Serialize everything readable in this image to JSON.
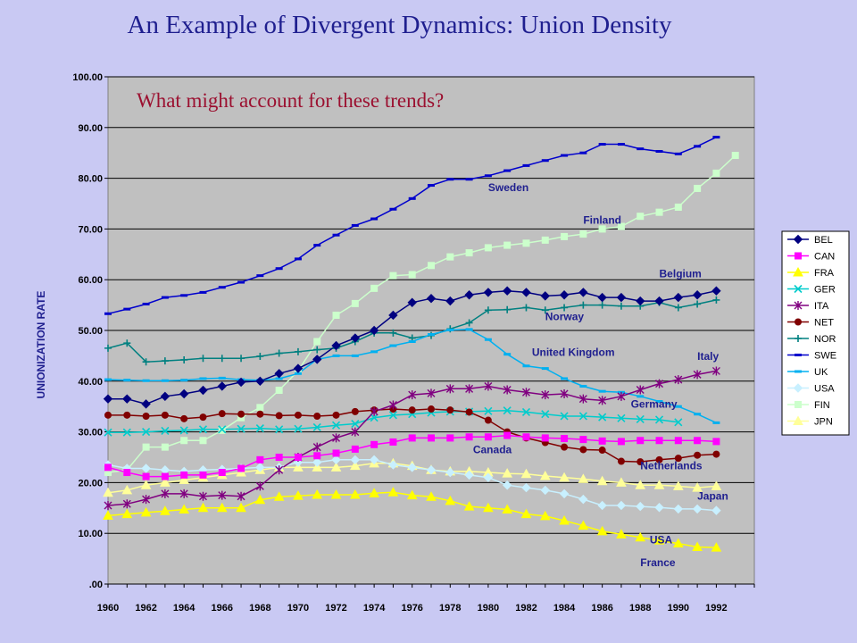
{
  "header": {
    "title": "An Example of Divergent Dynamics: Union Density"
  },
  "chart_data": {
    "type": "line",
    "question": "What might account for these trends?",
    "ylabel": "UNIONIZATION RATE",
    "xlabel": "",
    "ylim": [
      0,
      100
    ],
    "yticks": [
      "100.00",
      "90.00",
      "80.00",
      "70.00",
      "60.00",
      "50.00",
      "40.00",
      "30.00",
      "20.00",
      "10.00",
      ".00"
    ],
    "xticks": [
      "1960",
      "1962",
      "1964",
      "1966",
      "1968",
      "1970",
      "1972",
      "1974",
      "1976",
      "1978",
      "1980",
      "1982",
      "1984",
      "1986",
      "1988",
      "1990",
      "1992"
    ],
    "x": [
      1960,
      1961,
      1962,
      1963,
      1964,
      1965,
      1966,
      1967,
      1968,
      1969,
      1970,
      1971,
      1972,
      1973,
      1974,
      1975,
      1976,
      1977,
      1978,
      1979,
      1980,
      1981,
      1982,
      1983,
      1984,
      1985,
      1986,
      1987,
      1988,
      1989,
      1990,
      1991,
      1992,
      1993
    ],
    "legend_position": "right",
    "grid": true,
    "series": [
      {
        "name": "BEL",
        "color": "#000080",
        "marker": "diamond",
        "values": [
          36.5,
          36.5,
          35.5,
          37,
          37.5,
          38.2,
          39,
          39.8,
          40,
          41.5,
          42.5,
          44.3,
          47,
          48.5,
          50,
          53,
          55.5,
          56.3,
          55.8,
          57,
          57.5,
          57.8,
          57.5,
          56.8,
          57,
          57.5,
          56.5,
          56.5,
          55.8,
          55.8,
          56.5,
          57,
          57.8,
          null
        ]
      },
      {
        "name": "CAN",
        "color": "#ff00ff",
        "marker": "square",
        "values": [
          23,
          22,
          21.2,
          21.2,
          21.5,
          21.5,
          22,
          22.8,
          24.5,
          25,
          25,
          25.3,
          25.8,
          26.6,
          27.5,
          28,
          28.8,
          28.8,
          28.8,
          29,
          29,
          29.3,
          29,
          28.8,
          28.7,
          28.5,
          28.2,
          28.1,
          28.3,
          28.3,
          28.3,
          28.3,
          28.1,
          null
        ]
      },
      {
        "name": "FRA",
        "color": "#ffff00",
        "marker": "triangle",
        "values": [
          13.5,
          13.8,
          14.1,
          14.4,
          14.7,
          15,
          15,
          15,
          16.6,
          17.2,
          17.4,
          17.6,
          17.6,
          17.6,
          17.9,
          18.1,
          17.5,
          17.2,
          16.4,
          15.3,
          15,
          14.7,
          13.8,
          13.4,
          12.5,
          11.5,
          10.4,
          9.8,
          9.2,
          8.6,
          8.0,
          7.3,
          7.2,
          null
        ]
      },
      {
        "name": "GER",
        "color": "#00cccc",
        "marker": "x",
        "values": [
          29.9,
          29.9,
          30,
          30.2,
          30.3,
          30.5,
          30.5,
          30.6,
          30.7,
          30.5,
          30.6,
          30.9,
          31.3,
          31.6,
          32.8,
          33.3,
          33.5,
          33.8,
          34,
          34,
          34.1,
          34.2,
          33.9,
          33.5,
          33.1,
          33.1,
          32.9,
          32.7,
          32.5,
          32.4,
          31.9,
          null,
          null,
          null
        ]
      },
      {
        "name": "ITA",
        "color": "#800080",
        "marker": "asterisk",
        "values": [
          15.5,
          15.8,
          16.7,
          17.8,
          17.8,
          17.3,
          17.5,
          17.3,
          19.3,
          22.5,
          25,
          27,
          28.8,
          30,
          34,
          35.3,
          37.3,
          37.6,
          38.5,
          38.5,
          39,
          38.3,
          37.8,
          37.3,
          37.5,
          36.5,
          36.2,
          37,
          38.3,
          39.5,
          40.3,
          41.3,
          42,
          null
        ]
      },
      {
        "name": "NET",
        "color": "#800000",
        "marker": "circle",
        "values": [
          33.3,
          33.3,
          33.1,
          33.3,
          32.6,
          32.9,
          33.6,
          33.5,
          33.5,
          33.2,
          33.3,
          33.1,
          33.3,
          34,
          34.3,
          34.5,
          34.3,
          34.5,
          34.3,
          33.9,
          32.3,
          30,
          28.8,
          27.9,
          27,
          26.5,
          26.4,
          24.2,
          24.1,
          24.5,
          24.8,
          25.4,
          25.6,
          null
        ]
      },
      {
        "name": "NOR",
        "color": "#008080",
        "marker": "plus",
        "values": [
          46.5,
          47.5,
          43.8,
          44,
          44.2,
          44.5,
          44.5,
          44.5,
          44.9,
          45.5,
          45.8,
          46.2,
          46.5,
          47.8,
          49.5,
          49.5,
          48.5,
          49,
          50.3,
          51.5,
          54,
          54.1,
          54.5,
          54,
          54.5,
          55,
          55,
          54.8,
          54.8,
          55.5,
          54.5,
          55.2,
          56,
          null
        ]
      },
      {
        "name": "SWE",
        "color": "#0000cc",
        "marker": "dash",
        "values": [
          53.3,
          54.2,
          55.2,
          56.5,
          56.9,
          57.5,
          58.5,
          59.5,
          60.8,
          62.2,
          64.1,
          66.8,
          68.8,
          70.7,
          72,
          73.9,
          76,
          78.6,
          79.8,
          79.8,
          80.5,
          81.5,
          82.5,
          83.5,
          84.5,
          85,
          86.7,
          86.7,
          85.8,
          85.3,
          84.8,
          86.3,
          88.1,
          null
        ]
      },
      {
        "name": "UK",
        "color": "#00b0f0",
        "marker": "dash",
        "values": [
          40.3,
          40.2,
          40.1,
          40.1,
          40.2,
          40.5,
          40.6,
          40.3,
          40.2,
          40.5,
          41.5,
          44.3,
          45,
          45,
          45.8,
          47,
          47.8,
          49.2,
          50.1,
          50.2,
          48.2,
          45.3,
          43,
          42.5,
          40.5,
          39,
          38,
          37.8,
          37,
          36,
          35,
          33.5,
          31.8,
          null
        ]
      },
      {
        "name": "USA",
        "color": "#c8f0ff",
        "marker": "diamond",
        "values": [
          23.5,
          22.8,
          22.8,
          22.5,
          22.2,
          22.5,
          22.6,
          22.8,
          23,
          23,
          24,
          24,
          24.5,
          24.5,
          24.5,
          23.5,
          23,
          22.5,
          22,
          21.5,
          21,
          19.5,
          19,
          18.5,
          17.8,
          16.7,
          15.5,
          15.5,
          15.3,
          15.1,
          14.8,
          14.8,
          14.5,
          null
        ]
      },
      {
        "name": "FIN",
        "color": "#ccffcc",
        "marker": "square",
        "values": [
          22,
          22.5,
          27,
          27,
          28.3,
          28.3,
          30.3,
          32.8,
          34.8,
          38.2,
          42,
          47.8,
          53,
          55.3,
          58.3,
          60.8,
          61,
          62.8,
          64.5,
          65.3,
          66.3,
          66.8,
          67.2,
          67.8,
          68.5,
          69,
          70,
          70.5,
          72.5,
          73.3,
          74.3,
          78,
          81,
          84.5
        ]
      },
      {
        "name": "JPN",
        "color": "#ffff99",
        "marker": "triangle",
        "values": [
          18,
          18.5,
          19.5,
          20,
          20.5,
          21,
          21.5,
          22,
          22.5,
          23,
          23,
          23,
          23,
          23.3,
          23.8,
          23.8,
          23.3,
          22.5,
          22.2,
          22.2,
          22,
          21.8,
          21.7,
          21.3,
          21,
          20.7,
          20.3,
          20,
          19.5,
          19.5,
          19.3,
          19,
          19.3,
          null
        ]
      }
    ],
    "annotations": [
      {
        "text": "Sweden",
        "x": 1980,
        "y": 77.5
      },
      {
        "text": "Finland",
        "x": 1985,
        "y": 71
      },
      {
        "text": "Belgium",
        "x": 1989,
        "y": 60.5
      },
      {
        "text": "Norway",
        "x": 1983,
        "y": 52
      },
      {
        "text": "United Kingdom",
        "x": 1982.3,
        "y": 45
      },
      {
        "text": "Italy",
        "x": 1991,
        "y": 44.2
      },
      {
        "text": "Germany",
        "x": 1987.5,
        "y": 34.8
      },
      {
        "text": "Canada",
        "x": 1979.2,
        "y": 25.8
      },
      {
        "text": "Netherlands",
        "x": 1988,
        "y": 22.6
      },
      {
        "text": "Japan",
        "x": 1991,
        "y": 16.6
      },
      {
        "text": "USA",
        "x": 1988.5,
        "y": 8
      },
      {
        "text": "France",
        "x": 1988,
        "y": 3.5
      }
    ]
  }
}
